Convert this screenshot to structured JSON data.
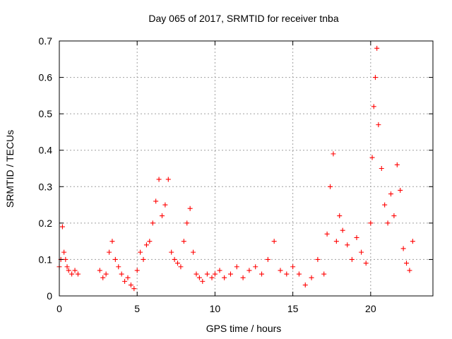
{
  "chart_data": {
    "type": "scatter",
    "title": "Day 065 of 2017, SRMTID for receiver tnba",
    "xlabel": "GPS time / hours",
    "ylabel": "SRMTID / TECUs",
    "xlim": [
      0,
      24
    ],
    "ylim": [
      0,
      0.7
    ],
    "xticks": [
      0,
      5,
      10,
      15,
      20
    ],
    "xtick_labels": [
      "0",
      "5",
      "10",
      "15",
      "20"
    ],
    "yticks": [
      0,
      0.1,
      0.2,
      0.3,
      0.4,
      0.5,
      0.6,
      0.7
    ],
    "ytick_labels": [
      "0",
      "0.1",
      "0.2",
      "0.3",
      "0.4",
      "0.5",
      "0.6",
      "0.7"
    ],
    "grid": true,
    "marker": "+",
    "marker_color": "#ff0000",
    "series": [
      {
        "name": "SRMTID",
        "x": [
          0.0,
          0.1,
          0.2,
          0.3,
          0.4,
          0.5,
          0.6,
          0.8,
          1.0,
          1.2,
          2.6,
          2.8,
          3.0,
          3.2,
          3.4,
          3.6,
          3.8,
          4.0,
          4.2,
          4.4,
          4.6,
          4.8,
          5.0,
          5.2,
          5.4,
          5.6,
          5.8,
          6.0,
          6.2,
          6.4,
          6.6,
          6.8,
          7.0,
          7.2,
          7.4,
          7.6,
          7.8,
          8.0,
          8.2,
          8.4,
          8.6,
          8.8,
          9.0,
          9.2,
          9.5,
          9.8,
          10.0,
          10.3,
          10.6,
          11.0,
          11.4,
          11.8,
          12.2,
          12.6,
          13.0,
          13.4,
          13.8,
          14.2,
          14.6,
          15.0,
          15.4,
          15.8,
          16.2,
          16.6,
          17.0,
          17.2,
          17.4,
          17.6,
          17.8,
          18.0,
          18.2,
          18.5,
          18.8,
          19.1,
          19.4,
          19.7,
          20.0,
          20.1,
          20.2,
          20.3,
          20.4,
          20.5,
          20.7,
          20.9,
          21.1,
          21.3,
          21.5,
          21.7,
          21.9,
          22.1,
          22.3,
          22.5,
          22.7
        ],
        "y": [
          0.08,
          0.1,
          0.19,
          0.12,
          0.1,
          0.08,
          0.07,
          0.06,
          0.07,
          0.06,
          0.07,
          0.05,
          0.06,
          0.12,
          0.15,
          0.1,
          0.08,
          0.06,
          0.04,
          0.05,
          0.03,
          0.02,
          0.07,
          0.12,
          0.1,
          0.14,
          0.15,
          0.2,
          0.26,
          0.32,
          0.22,
          0.25,
          0.32,
          0.12,
          0.1,
          0.09,
          0.08,
          0.15,
          0.2,
          0.24,
          0.12,
          0.06,
          0.05,
          0.04,
          0.06,
          0.05,
          0.06,
          0.07,
          0.05,
          0.06,
          0.08,
          0.05,
          0.07,
          0.08,
          0.06,
          0.1,
          0.15,
          0.07,
          0.06,
          0.08,
          0.06,
          0.03,
          0.05,
          0.1,
          0.06,
          0.17,
          0.3,
          0.39,
          0.15,
          0.22,
          0.18,
          0.14,
          0.1,
          0.16,
          0.12,
          0.09,
          0.2,
          0.38,
          0.52,
          0.6,
          0.68,
          0.47,
          0.35,
          0.25,
          0.2,
          0.28,
          0.22,
          0.36,
          0.29,
          0.13,
          0.09,
          0.07,
          0.15
        ]
      }
    ]
  }
}
